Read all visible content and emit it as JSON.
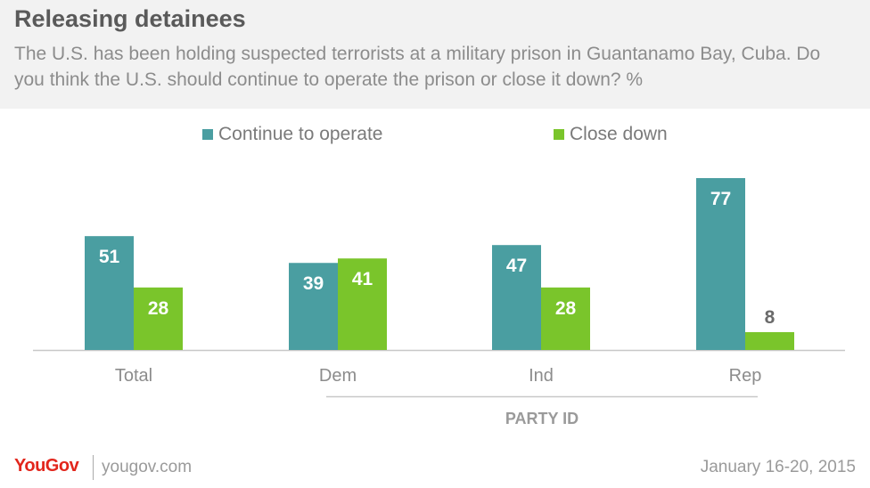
{
  "header": {
    "title": "Releasing detainees",
    "subtitle": "The U.S. has been holding suspected terrorists at a military prison in Guantanamo Bay, Cuba. Do you think the U.S. should continue to operate the prison or close it down? %"
  },
  "chart_data": {
    "type": "bar",
    "categories": [
      "Total",
      "Dem",
      "Ind",
      "Rep"
    ],
    "series": [
      {
        "name": "Continue to operate",
        "values": [
          51,
          39,
          47,
          77
        ],
        "color": "#4a9ea1"
      },
      {
        "name": "Close down",
        "values": [
          28,
          41,
          28,
          8
        ],
        "color": "#7ac52b"
      }
    ],
    "group_label": "PARTY ID",
    "ylim": [
      0,
      77
    ],
    "legend": "top"
  },
  "footer": {
    "brand": "YouGov",
    "url": "yougov.com",
    "date": "January 16-20, 2015"
  }
}
